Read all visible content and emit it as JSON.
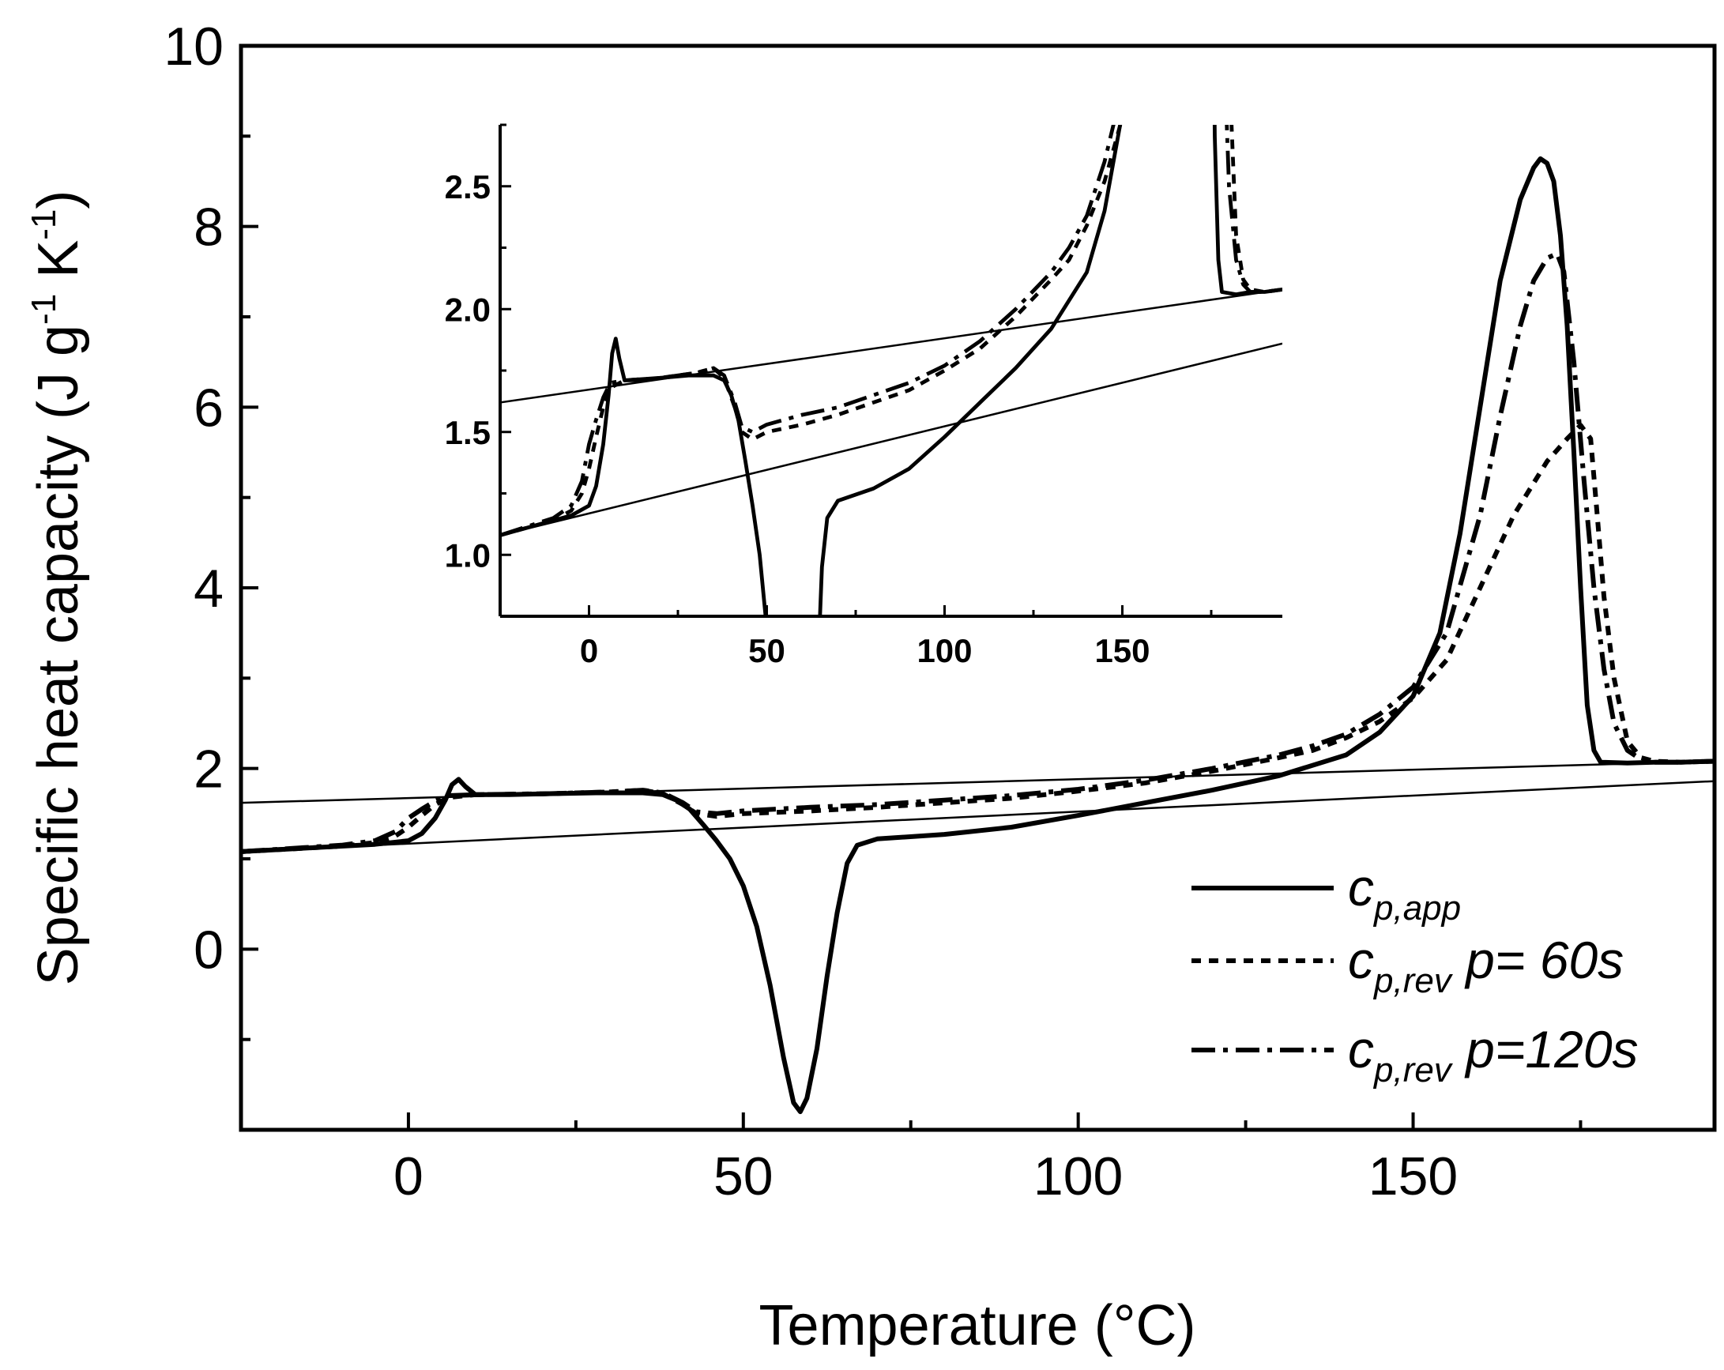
{
  "chart_data": {
    "type": "line",
    "xlabel": "Temperature (°C)",
    "ylabel": {
      "prefix": "Specific heat capacity  (J g",
      "exp1": "-1",
      "mid": " K",
      "exp2": "-1",
      "suffix": ")"
    },
    "xlim": [
      -25,
      195
    ],
    "ylim": [
      -2.0,
      10.0
    ],
    "xticks": [
      0,
      50,
      100,
      150
    ],
    "xtick_labels": [
      "0",
      "50",
      "100",
      "150"
    ],
    "yticks": [
      0,
      2,
      4,
      6,
      8,
      10
    ],
    "ytick_labels": [
      "0",
      "2",
      "4",
      "6",
      "8",
      "10"
    ],
    "legend_position": "bottom-right",
    "legend": [
      {
        "symbol": "c",
        "sub": "p,app",
        "rest": "",
        "style": "solid"
      },
      {
        "symbol": "c",
        "sub": "p,rev",
        "rest": " p= 60s",
        "style": "dotted"
      },
      {
        "symbol": "c",
        "sub": "p,rev",
        "rest": " p=120s",
        "style": "dashdot"
      }
    ],
    "series": [
      {
        "name": "c_p,app",
        "style": "solid",
        "points": [
          [
            -25,
            1.08
          ],
          [
            -15,
            1.12
          ],
          [
            -5,
            1.16
          ],
          [
            0,
            1.2
          ],
          [
            2,
            1.28
          ],
          [
            4,
            1.45
          ],
          [
            5.5,
            1.65
          ],
          [
            6.5,
            1.82
          ],
          [
            7.5,
            1.88
          ],
          [
            8.5,
            1.8
          ],
          [
            10,
            1.71
          ],
          [
            15,
            1.71
          ],
          [
            20,
            1.72
          ],
          [
            28,
            1.73
          ],
          [
            35,
            1.73
          ],
          [
            38,
            1.71
          ],
          [
            40,
            1.65
          ],
          [
            42,
            1.55
          ],
          [
            44,
            1.38
          ],
          [
            46,
            1.2
          ],
          [
            48,
            1.0
          ],
          [
            50,
            0.7
          ],
          [
            52,
            0.25
          ],
          [
            54,
            -0.4
          ],
          [
            56,
            -1.2
          ],
          [
            57.5,
            -1.7
          ],
          [
            58.5,
            -1.8
          ],
          [
            59.5,
            -1.65
          ],
          [
            61,
            -1.1
          ],
          [
            62.5,
            -0.3
          ],
          [
            64,
            0.4
          ],
          [
            65.5,
            0.95
          ],
          [
            67,
            1.15
          ],
          [
            70,
            1.22
          ],
          [
            80,
            1.27
          ],
          [
            90,
            1.35
          ],
          [
            100,
            1.48
          ],
          [
            110,
            1.62
          ],
          [
            120,
            1.76
          ],
          [
            130,
            1.92
          ],
          [
            140,
            2.15
          ],
          [
            145,
            2.4
          ],
          [
            150,
            2.8
          ],
          [
            154,
            3.5
          ],
          [
            157,
            4.6
          ],
          [
            160,
            6.0
          ],
          [
            163,
            7.4
          ],
          [
            166,
            8.3
          ],
          [
            168,
            8.65
          ],
          [
            169,
            8.75
          ],
          [
            170,
            8.7
          ],
          [
            171,
            8.5
          ],
          [
            172,
            7.9
          ],
          [
            173,
            6.9
          ],
          [
            174,
            5.5
          ],
          [
            175,
            4.0
          ],
          [
            176,
            2.7
          ],
          [
            177,
            2.2
          ],
          [
            178,
            2.07
          ],
          [
            182,
            2.06
          ],
          [
            186,
            2.07
          ],
          [
            190,
            2.07
          ],
          [
            195,
            2.08
          ]
        ]
      },
      {
        "name": "c_p,rev p=60s",
        "style": "dotted",
        "points": [
          [
            -25,
            1.08
          ],
          [
            -10,
            1.14
          ],
          [
            -5,
            1.18
          ],
          [
            -2,
            1.25
          ],
          [
            0,
            1.35
          ],
          [
            2,
            1.48
          ],
          [
            4,
            1.6
          ],
          [
            6,
            1.68
          ],
          [
            10,
            1.71
          ],
          [
            20,
            1.72
          ],
          [
            30,
            1.74
          ],
          [
            35,
            1.76
          ],
          [
            38,
            1.72
          ],
          [
            41,
            1.6
          ],
          [
            43,
            1.5
          ],
          [
            46,
            1.47
          ],
          [
            50,
            1.5
          ],
          [
            60,
            1.53
          ],
          [
            70,
            1.57
          ],
          [
            80,
            1.62
          ],
          [
            90,
            1.67
          ],
          [
            100,
            1.75
          ],
          [
            110,
            1.84
          ],
          [
            120,
            1.97
          ],
          [
            130,
            2.12
          ],
          [
            135,
            2.2
          ],
          [
            140,
            2.34
          ],
          [
            145,
            2.52
          ],
          [
            150,
            2.78
          ],
          [
            155,
            3.2
          ],
          [
            160,
            4.0
          ],
          [
            165,
            4.8
          ],
          [
            170,
            5.4
          ],
          [
            173,
            5.65
          ],
          [
            175,
            5.8
          ],
          [
            176.5,
            5.65
          ],
          [
            177.5,
            4.8
          ],
          [
            178.5,
            3.9
          ],
          [
            180,
            3.0
          ],
          [
            182,
            2.3
          ],
          [
            184,
            2.12
          ],
          [
            186,
            2.08
          ],
          [
            190,
            2.07
          ],
          [
            195,
            2.08
          ]
        ]
      },
      {
        "name": "c_p,rev p=120s",
        "style": "dashdot",
        "points": [
          [
            -25,
            1.08
          ],
          [
            -10,
            1.15
          ],
          [
            -5,
            1.2
          ],
          [
            -2,
            1.3
          ],
          [
            0,
            1.45
          ],
          [
            2,
            1.55
          ],
          [
            4,
            1.64
          ],
          [
            6,
            1.7
          ],
          [
            10,
            1.71
          ],
          [
            20,
            1.72
          ],
          [
            30,
            1.74
          ],
          [
            35,
            1.76
          ],
          [
            38,
            1.73
          ],
          [
            41,
            1.62
          ],
          [
            43,
            1.52
          ],
          [
            46,
            1.5
          ],
          [
            50,
            1.53
          ],
          [
            60,
            1.57
          ],
          [
            70,
            1.6
          ],
          [
            80,
            1.65
          ],
          [
            90,
            1.7
          ],
          [
            100,
            1.77
          ],
          [
            110,
            1.87
          ],
          [
            120,
            2.0
          ],
          [
            130,
            2.15
          ],
          [
            135,
            2.25
          ],
          [
            140,
            2.38
          ],
          [
            145,
            2.6
          ],
          [
            150,
            2.9
          ],
          [
            155,
            3.5
          ],
          [
            160,
            4.8
          ],
          [
            163,
            5.9
          ],
          [
            166,
            6.9
          ],
          [
            168,
            7.4
          ],
          [
            170,
            7.65
          ],
          [
            171.5,
            7.7
          ],
          [
            172.5,
            7.5
          ],
          [
            174,
            6.5
          ],
          [
            175.5,
            5.2
          ],
          [
            177,
            4.0
          ],
          [
            178.5,
            3.1
          ],
          [
            180,
            2.5
          ],
          [
            182,
            2.2
          ],
          [
            184,
            2.1
          ],
          [
            186,
            2.07
          ],
          [
            190,
            2.07
          ],
          [
            195,
            2.08
          ]
        ]
      },
      {
        "name": "baseline-upper",
        "style": "thin",
        "points": [
          [
            -25,
            1.62
          ],
          [
            195,
            2.08
          ]
        ]
      },
      {
        "name": "baseline-lower",
        "style": "thin",
        "points": [
          [
            -25,
            1.08
          ],
          [
            195,
            1.86
          ]
        ]
      }
    ],
    "inset": {
      "xlim": [
        -25,
        195
      ],
      "ylim": [
        0.75,
        2.75
      ],
      "xticks": [
        0,
        50,
        100,
        150
      ],
      "xtick_labels": [
        "0",
        "50",
        "100",
        "150"
      ],
      "yticks": [
        1.0,
        1.5,
        2.0,
        2.5
      ],
      "ytick_labels": [
        "1.0",
        "1.5",
        "2.0",
        "2.5"
      ]
    }
  }
}
